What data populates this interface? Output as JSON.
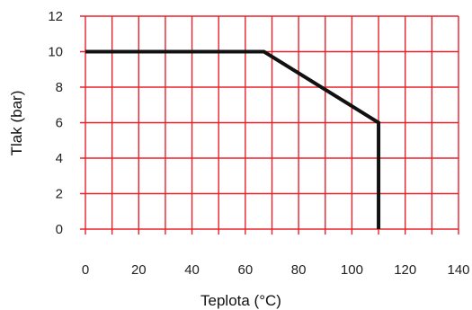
{
  "chart_data": {
    "type": "line",
    "xlabel": "Teplota (°C)",
    "ylabel": "Tlak (bar)",
    "xlim": [
      0,
      140
    ],
    "ylim": [
      0,
      12
    ],
    "x_ticks": [
      0,
      20,
      40,
      60,
      80,
      100,
      120,
      140
    ],
    "y_ticks": [
      0,
      2,
      4,
      6,
      8,
      10,
      12
    ],
    "grid": true,
    "series": [
      {
        "x": [
          0,
          67,
          110,
          110
        ],
        "y": [
          10,
          10,
          6,
          0
        ]
      }
    ]
  },
  "colors": {
    "grid": "#e8202a",
    "line": "#111111",
    "text": "#222222"
  }
}
